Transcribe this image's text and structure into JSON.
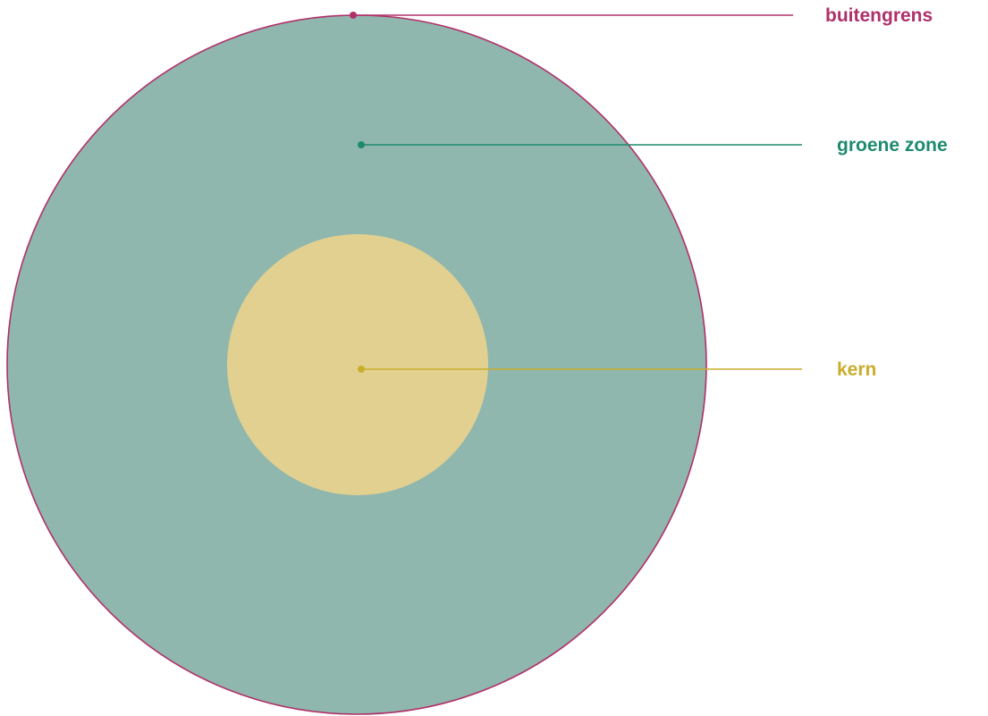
{
  "diagram": {
    "labels": {
      "outer": "buitengrens",
      "middle": "groene zone",
      "inner": "kern"
    },
    "colors": {
      "outer_stroke": "#b0306a",
      "green_fill": "#8fb7ad",
      "green_line": "#1e8a6e",
      "core_fill": "#e2d091",
      "core_line": "#c9ad2c"
    }
  }
}
